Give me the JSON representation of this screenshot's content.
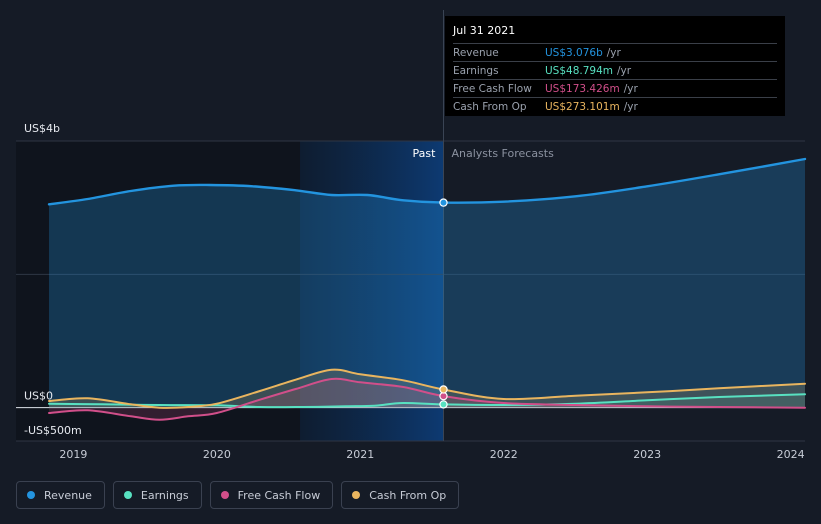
{
  "chart_data": {
    "type": "line",
    "x_range": [
      2018.6,
      2024.1
    ],
    "x_ticks": [
      "2019",
      "2020",
      "2021",
      "2022",
      "2023",
      "2024"
    ],
    "y_ticks": [
      {
        "value": 4000,
        "label": "US$4b"
      },
      {
        "value": 0,
        "label": "US$0"
      },
      {
        "value": -500,
        "label": "-US$500m"
      }
    ],
    "ylim": [
      -500,
      4000
    ],
    "grid": true,
    "past_label": "Past",
    "forecast_label": "Analysts Forecasts",
    "divider_x": 2021.58,
    "highlight_range": [
      2020.58,
      2021.58
    ],
    "series": [
      {
        "key": "revenue",
        "name": "Revenue",
        "color": "#2394df",
        "x": [
          2018.83,
          2019.1,
          2019.4,
          2019.7,
          2019.95,
          2020.25,
          2020.55,
          2020.8,
          2021.05,
          2021.3,
          2021.58,
          2022.0,
          2022.5,
          2023.0,
          2023.5,
          2024.1
        ],
        "y": [
          3050,
          3130,
          3250,
          3330,
          3340,
          3320,
          3260,
          3190,
          3190,
          3110,
          3076,
          3090,
          3170,
          3320,
          3500,
          3730
        ]
      },
      {
        "key": "earnings",
        "name": "Earnings",
        "color": "#58e1c1",
        "x": [
          2018.83,
          2019.2,
          2019.6,
          2020.0,
          2020.3,
          2020.6,
          2020.9,
          2021.1,
          2021.3,
          2021.58,
          2022.0,
          2022.5,
          2023.0,
          2023.5,
          2024.1
        ],
        "y": [
          60,
          50,
          40,
          35,
          10,
          10,
          20,
          30,
          70,
          48.8,
          40,
          60,
          110,
          160,
          200
        ]
      },
      {
        "key": "fcf",
        "name": "Free Cash Flow",
        "color": "#d14f8a",
        "x": [
          2018.83,
          2019.1,
          2019.4,
          2019.6,
          2019.8,
          2020.0,
          2020.3,
          2020.55,
          2020.8,
          2021.0,
          2021.3,
          2021.58,
          2022.0,
          2022.5,
          2023.0,
          2023.5,
          2024.1
        ],
        "y": [
          -80,
          -40,
          -130,
          -180,
          -130,
          -80,
          120,
          280,
          430,
          380,
          310,
          173.4,
          70,
          40,
          20,
          10,
          0
        ]
      },
      {
        "key": "cfo",
        "name": "Cash From Op",
        "color": "#e9b55f",
        "x": [
          2018.83,
          2019.1,
          2019.4,
          2019.6,
          2019.8,
          2020.0,
          2020.3,
          2020.55,
          2020.8,
          2021.0,
          2021.3,
          2021.58,
          2022.0,
          2022.5,
          2023.0,
          2023.5,
          2024.1
        ],
        "y": [
          100,
          140,
          50,
          0,
          10,
          60,
          250,
          420,
          570,
          500,
          410,
          273.1,
          130,
          180,
          230,
          290,
          360
        ]
      }
    ]
  },
  "tooltip": {
    "date": "Jul 31 2021",
    "rows": [
      {
        "label": "Revenue",
        "value": "US$3.076b",
        "unit": "/yr",
        "color": "#2394df"
      },
      {
        "label": "Earnings",
        "value": "US$48.794m",
        "unit": "/yr",
        "color": "#58e1c1"
      },
      {
        "label": "Free Cash Flow",
        "value": "US$173.426m",
        "unit": "/yr",
        "color": "#d14f8a"
      },
      {
        "label": "Cash From Op",
        "value": "US$273.101m",
        "unit": "/yr",
        "color": "#e9b55f"
      }
    ]
  },
  "legend": [
    {
      "label": "Revenue",
      "color": "#2394df"
    },
    {
      "label": "Earnings",
      "color": "#58e1c1"
    },
    {
      "label": "Free Cash Flow",
      "color": "#d14f8a"
    },
    {
      "label": "Cash From Op",
      "color": "#e9b55f"
    }
  ]
}
